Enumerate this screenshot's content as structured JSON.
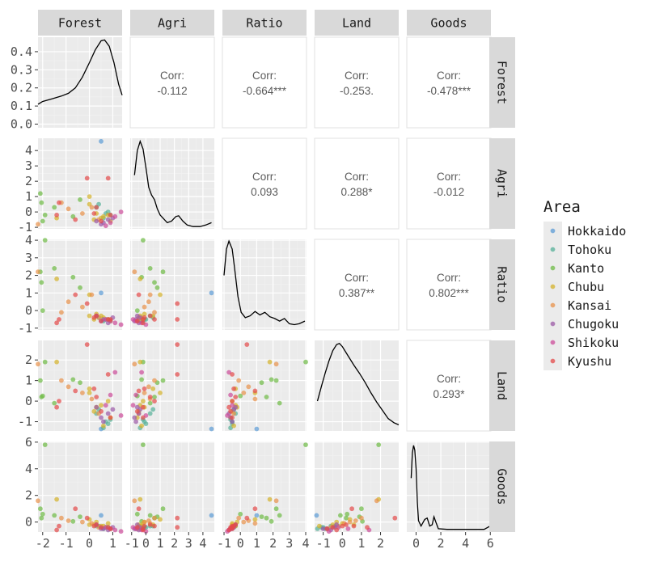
{
  "chart_data": {
    "type": "scatter-matrix",
    "variables": [
      "Forest",
      "Agri",
      "Ratio",
      "Land",
      "Goods"
    ],
    "axis_ranges": {
      "Forest": [
        -2.2,
        1.4
      ],
      "Agri": [
        -1.1,
        4.8
      ],
      "Ratio": [
        -1.1,
        4.05
      ],
      "Land": [
        -1.45,
        2.95
      ],
      "Goods": [
        -0.75,
        6.05
      ]
    },
    "x_ticks": {
      "Forest": [
        "-2",
        "-1",
        "0",
        "1"
      ],
      "Agri": [
        "-1",
        "0",
        "1",
        "2",
        "3",
        "4"
      ],
      "Ratio": [
        "-1",
        "0",
        "1",
        "2",
        "3",
        "4"
      ],
      "Land": [
        "-1",
        "0",
        "1",
        "2"
      ],
      "Goods": [
        "0",
        "2",
        "4",
        "6"
      ]
    },
    "y_ticks": {
      "Forest": [
        "0.0",
        "0.1",
        "0.2",
        "0.3",
        "0.4"
      ],
      "Agri": [
        "-1",
        "0",
        "1",
        "2",
        "3",
        "4"
      ],
      "Ratio": [
        "-1",
        "0",
        "1",
        "2",
        "3",
        "4"
      ],
      "Land": [
        "-1",
        "0",
        "1",
        "2"
      ],
      "Goods": [
        "0",
        "2",
        "4",
        "6"
      ]
    },
    "density_ylim_forest": [
      -0.02,
      0.48
    ],
    "forest_density_ticks": [
      0.0,
      0.1,
      0.2,
      0.3,
      0.4
    ],
    "correlations": [
      {
        "row": "Forest",
        "col": "Agri",
        "label": "Corr:",
        "value": "-0.112"
      },
      {
        "row": "Forest",
        "col": "Ratio",
        "label": "Corr:",
        "value": "-0.664***"
      },
      {
        "row": "Forest",
        "col": "Land",
        "label": "Corr:",
        "value": "-0.253."
      },
      {
        "row": "Forest",
        "col": "Goods",
        "label": "Corr:",
        "value": "-0.478***"
      },
      {
        "row": "Agri",
        "col": "Ratio",
        "label": "Corr:",
        "value": "0.093"
      },
      {
        "row": "Agri",
        "col": "Land",
        "label": "Corr:",
        "value": "0.288*"
      },
      {
        "row": "Agri",
        "col": "Goods",
        "label": "Corr:",
        "value": "-0.012"
      },
      {
        "row": "Ratio",
        "col": "Land",
        "label": "Corr:",
        "value": "0.387**"
      },
      {
        "row": "Ratio",
        "col": "Goods",
        "label": "Corr:",
        "value": "0.802***"
      },
      {
        "row": "Land",
        "col": "Goods",
        "label": "Corr:",
        "value": "0.293*"
      }
    ],
    "densities": {
      "Forest": [
        [
          -2.2,
          0.11
        ],
        [
          -2.0,
          0.125
        ],
        [
          -1.6,
          0.14
        ],
        [
          -1.2,
          0.155
        ],
        [
          -0.9,
          0.17
        ],
        [
          -0.6,
          0.2
        ],
        [
          -0.3,
          0.26
        ],
        [
          0.0,
          0.34
        ],
        [
          0.25,
          0.41
        ],
        [
          0.5,
          0.46
        ],
        [
          0.65,
          0.465
        ],
        [
          0.85,
          0.43
        ],
        [
          1.05,
          0.34
        ],
        [
          1.25,
          0.22
        ],
        [
          1.4,
          0.16
        ]
      ],
      "Agri": [
        [
          -0.8,
          2.4
        ],
        [
          -0.6,
          4.0
        ],
        [
          -0.4,
          4.6
        ],
        [
          -0.2,
          4.1
        ],
        [
          0.0,
          2.9
        ],
        [
          0.2,
          1.6
        ],
        [
          0.4,
          1.1
        ],
        [
          0.6,
          0.8
        ],
        [
          0.8,
          0.2
        ],
        [
          1.0,
          -0.2
        ],
        [
          1.2,
          -0.4
        ],
        [
          1.5,
          -0.7
        ],
        [
          1.8,
          -0.6
        ],
        [
          2.1,
          -0.3
        ],
        [
          2.3,
          -0.25
        ],
        [
          2.6,
          -0.6
        ],
        [
          2.9,
          -0.85
        ],
        [
          3.3,
          -0.95
        ],
        [
          3.8,
          -0.95
        ],
        [
          4.2,
          -0.85
        ],
        [
          4.6,
          -0.7
        ]
      ],
      "Ratio": [
        [
          -1.0,
          2.0
        ],
        [
          -0.85,
          3.5
        ],
        [
          -0.7,
          3.95
        ],
        [
          -0.5,
          3.5
        ],
        [
          -0.35,
          2.4
        ],
        [
          -0.15,
          0.8
        ],
        [
          0.05,
          -0.1
        ],
        [
          0.3,
          -0.4
        ],
        [
          0.6,
          -0.3
        ],
        [
          0.9,
          -0.05
        ],
        [
          1.2,
          -0.25
        ],
        [
          1.5,
          -0.1
        ],
        [
          1.8,
          -0.35
        ],
        [
          2.1,
          -0.45
        ],
        [
          2.4,
          -0.6
        ],
        [
          2.7,
          -0.45
        ],
        [
          3.0,
          -0.75
        ],
        [
          3.3,
          -0.8
        ],
        [
          3.6,
          -0.75
        ],
        [
          3.95,
          -0.6
        ]
      ],
      "Land": [
        [
          -1.3,
          0.0
        ],
        [
          -1.1,
          0.7
        ],
        [
          -0.9,
          1.35
        ],
        [
          -0.7,
          1.95
        ],
        [
          -0.5,
          2.45
        ],
        [
          -0.3,
          2.75
        ],
        [
          -0.15,
          2.8
        ],
        [
          0.0,
          2.65
        ],
        [
          0.3,
          2.2
        ],
        [
          0.6,
          1.75
        ],
        [
          0.9,
          1.35
        ],
        [
          1.2,
          0.9
        ],
        [
          1.5,
          0.4
        ],
        [
          1.8,
          -0.05
        ],
        [
          2.1,
          -0.45
        ],
        [
          2.4,
          -0.85
        ],
        [
          2.7,
          -1.05
        ],
        [
          2.95,
          -1.15
        ]
      ],
      "Goods": [
        [
          -0.4,
          3.3
        ],
        [
          -0.3,
          5.2
        ],
        [
          -0.2,
          5.75
        ],
        [
          -0.1,
          5.4
        ],
        [
          0.0,
          4.0
        ],
        [
          0.1,
          1.5
        ],
        [
          0.2,
          0.1
        ],
        [
          0.4,
          -0.3
        ],
        [
          0.7,
          0.2
        ],
        [
          0.9,
          0.3
        ],
        [
          1.1,
          -0.3
        ],
        [
          1.3,
          -0.2
        ],
        [
          1.45,
          0.4
        ],
        [
          1.6,
          0.0
        ],
        [
          1.8,
          -0.5
        ],
        [
          2.5,
          -0.55
        ],
        [
          4.0,
          -0.55
        ],
        [
          5.5,
          -0.55
        ],
        [
          6.0,
          -0.3
        ]
      ]
    },
    "legend": {
      "title": "Area",
      "entries": [
        {
          "name": "Hokkaido",
          "color": "#5b9bd5"
        },
        {
          "name": "Tohoku",
          "color": "#55b098"
        },
        {
          "name": "Kanto",
          "color": "#6dbb45"
        },
        {
          "name": "Chubu",
          "color": "#d4b22a"
        },
        {
          "name": "Kansai",
          "color": "#e8914a"
        },
        {
          "name": "Chugoku",
          "color": "#9b59a6"
        },
        {
          "name": "Shikoku",
          "color": "#cc4c9a"
        },
        {
          "name": "Kyushu",
          "color": "#e44a4a"
        }
      ]
    },
    "prefectures": [
      {
        "area": "Hokkaido",
        "Forest": 0.5,
        "Agri": 4.6,
        "Ratio": 1.0,
        "Land": -1.35,
        "Goods": 0.5
      },
      {
        "area": "Tohoku",
        "Forest": 0.8,
        "Agri": 0.0,
        "Ratio": -0.5,
        "Land": -1.1,
        "Goods": -0.4
      },
      {
        "area": "Tohoku",
        "Forest": 0.9,
        "Agri": -0.2,
        "Ratio": -0.6,
        "Land": -0.9,
        "Goods": -0.5
      },
      {
        "area": "Tohoku",
        "Forest": 0.4,
        "Agri": 0.5,
        "Ratio": -0.4,
        "Land": -0.4,
        "Goods": -0.3
      },
      {
        "area": "Tohoku",
        "Forest": 0.6,
        "Agri": -0.4,
        "Ratio": -0.6,
        "Land": -1.3,
        "Goods": -0.5
      },
      {
        "area": "Tohoku",
        "Forest": 0.7,
        "Agri": -0.1,
        "Ratio": -0.5,
        "Land": -1.0,
        "Goods": -0.4
      },
      {
        "area": "Tohoku",
        "Forest": 0.3,
        "Agri": 0.3,
        "Ratio": -0.3,
        "Land": -0.6,
        "Goods": -0.3
      },
      {
        "area": "Kanto",
        "Forest": -0.7,
        "Agri": -0.3,
        "Ratio": 1.9,
        "Land": 1.05,
        "Goods": 0.05
      },
      {
        "area": "Kanto",
        "Forest": -2.1,
        "Agri": 1.2,
        "Ratio": 2.2,
        "Land": 1.0,
        "Goods": 1.0
      },
      {
        "area": "Kanto",
        "Forest": -1.9,
        "Agri": -0.2,
        "Ratio": 4.0,
        "Land": 1.9,
        "Goods": 5.8
      },
      {
        "area": "Kanto",
        "Forest": -1.5,
        "Agri": 0.3,
        "Ratio": 2.4,
        "Land": -0.1,
        "Goods": 0.5
      },
      {
        "area": "Kanto",
        "Forest": -2.05,
        "Agri": 0.6,
        "Ratio": 1.6,
        "Land": 0.2,
        "Goods": 0.3
      },
      {
        "area": "Kanto",
        "Forest": -2.0,
        "Agri": -0.6,
        "Ratio": 0.0,
        "Land": 0.25,
        "Goods": 0.6
      },
      {
        "area": "Kanto",
        "Forest": -0.4,
        "Agri": 0.8,
        "Ratio": 1.3,
        "Land": 0.9,
        "Goods": 0.4
      },
      {
        "area": "Chubu",
        "Forest": -1.4,
        "Agri": -0.4,
        "Ratio": 1.8,
        "Land": 1.9,
        "Goods": 1.7
      },
      {
        "area": "Chubu",
        "Forest": 0.0,
        "Agri": 0.5,
        "Ratio": -0.3,
        "Land": 0.6,
        "Goods": -0.2
      },
      {
        "area": "Chubu",
        "Forest": 0.3,
        "Agri": -0.1,
        "Ratio": -0.2,
        "Land": -0.3,
        "Goods": 0.0
      },
      {
        "area": "Chubu",
        "Forest": 0.2,
        "Agri": -0.5,
        "Ratio": -0.5,
        "Land": -0.5,
        "Goods": -0.2
      },
      {
        "area": "Chubu",
        "Forest": 0.6,
        "Agri": -0.3,
        "Ratio": -0.4,
        "Land": -1.2,
        "Goods": -0.3
      },
      {
        "area": "Chubu",
        "Forest": 0.9,
        "Agri": -0.6,
        "Ratio": -0.6,
        "Land": -0.8,
        "Goods": -0.5
      },
      {
        "area": "Chubu",
        "Forest": 0.8,
        "Agri": -0.2,
        "Ratio": -0.5,
        "Land": 0.0,
        "Goods": -0.1
      },
      {
        "area": "Chubu",
        "Forest": 0.0,
        "Agri": 1.0,
        "Ratio": 0.9,
        "Land": 0.4,
        "Goods": 0.2
      },
      {
        "area": "Chubu",
        "Forest": 0.5,
        "Agri": -0.4,
        "Ratio": -0.3,
        "Land": -0.2,
        "Goods": -0.3
      },
      {
        "area": "Kansai",
        "Forest": -1.2,
        "Agri": 0.6,
        "Ratio": -0.1,
        "Land": 1.0,
        "Goods": 0.3
      },
      {
        "area": "Kansai",
        "Forest": -2.2,
        "Agri": -0.8,
        "Ratio": 2.2,
        "Land": 1.8,
        "Goods": 1.6
      },
      {
        "area": "Kansai",
        "Forest": -0.9,
        "Agri": 0.2,
        "Ratio": 0.5,
        "Land": 0.7,
        "Goods": 0.1
      },
      {
        "area": "Kansai",
        "Forest": 0.1,
        "Agri": 0.3,
        "Ratio": 0.9,
        "Land": 0.1,
        "Goods": -0.1
      },
      {
        "area": "Kansai",
        "Forest": -0.3,
        "Agri": -0.1,
        "Ratio": 0.2,
        "Land": 0.4,
        "Goods": 0.0
      },
      {
        "area": "Kansai",
        "Forest": 0.4,
        "Agri": -0.5,
        "Ratio": -0.4,
        "Land": -0.6,
        "Goods": -0.4
      },
      {
        "area": "Chugoku",
        "Forest": 0.6,
        "Agri": -0.7,
        "Ratio": -0.5,
        "Land": -1.0,
        "Goods": -0.5
      },
      {
        "area": "Chugoku",
        "Forest": 0.8,
        "Agri": -0.5,
        "Ratio": -0.7,
        "Land": -0.6,
        "Goods": -0.6
      },
      {
        "area": "Chugoku",
        "Forest": 0.5,
        "Agri": -0.8,
        "Ratio": -0.6,
        "Land": -0.8,
        "Goods": -0.5
      },
      {
        "area": "Chugoku",
        "Forest": 1.0,
        "Agri": -0.4,
        "Ratio": -0.4,
        "Land": -0.4,
        "Goods": -0.4
      },
      {
        "area": "Chugoku",
        "Forest": 0.3,
        "Agri": -0.6,
        "Ratio": -0.3,
        "Land": -0.3,
        "Goods": -0.2
      },
      {
        "area": "Shikoku",
        "Forest": 1.1,
        "Agri": -0.3,
        "Ratio": -0.7,
        "Land": 1.4,
        "Goods": -0.6
      },
      {
        "area": "Shikoku",
        "Forest": 0.9,
        "Agri": -0.7,
        "Ratio": -0.6,
        "Land": 0.3,
        "Goods": -0.5
      },
      {
        "area": "Shikoku",
        "Forest": 1.35,
        "Agri": 0.0,
        "Ratio": -0.8,
        "Land": -0.7,
        "Goods": -0.7
      },
      {
        "area": "Shikoku",
        "Forest": 0.7,
        "Agri": -0.9,
        "Ratio": -0.5,
        "Land": -0.2,
        "Goods": -0.4
      },
      {
        "area": "Kyushu",
        "Forest": -0.1,
        "Agri": 2.2,
        "Ratio": 0.4,
        "Land": 2.75,
        "Goods": 0.3
      },
      {
        "area": "Kyushu",
        "Forest": 0.8,
        "Agri": 2.2,
        "Ratio": -0.5,
        "Land": 1.3,
        "Goods": -0.4
      },
      {
        "area": "Kyushu",
        "Forest": -0.6,
        "Agri": -0.5,
        "Ratio": 0.9,
        "Land": 0.5,
        "Goods": 1.0
      },
      {
        "area": "Kyushu",
        "Forest": -1.3,
        "Agri": 0.6,
        "Ratio": -0.5,
        "Land": 0.0,
        "Goods": -0.3
      },
      {
        "area": "Kyushu",
        "Forest": -1.4,
        "Agri": -0.2,
        "Ratio": -0.7,
        "Land": -0.3,
        "Goods": -0.6
      },
      {
        "area": "Kyushu",
        "Forest": 0.3,
        "Agri": 0.3,
        "Ratio": -0.3,
        "Land": 0.2,
        "Goods": -0.2
      },
      {
        "area": "Kyushu",
        "Forest": 0.5,
        "Agri": -0.6,
        "Ratio": -0.6,
        "Land": -0.5,
        "Goods": -0.4
      },
      {
        "area": "Kyushu",
        "Forest": 0.9,
        "Agri": -0.2,
        "Ratio": -0.5,
        "Land": -0.8,
        "Goods": -0.5
      },
      {
        "area": "Kyushu",
        "Forest": 0.2,
        "Agri": -0.1,
        "Ratio": -0.4,
        "Land": 0.6,
        "Goods": -0.3
      }
    ]
  }
}
